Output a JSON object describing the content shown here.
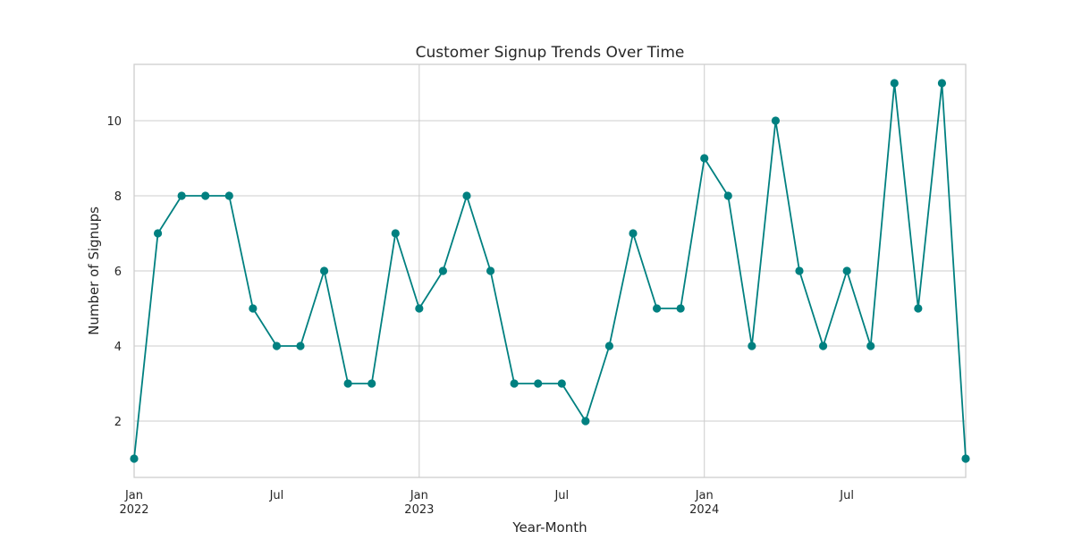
{
  "chart_data": {
    "type": "line",
    "title": "Customer Signup Trends Over Time",
    "xlabel": "Year-Month",
    "ylabel": "Number of Signups",
    "x": [
      "2022-01",
      "2022-02",
      "2022-03",
      "2022-04",
      "2022-05",
      "2022-06",
      "2022-07",
      "2022-08",
      "2022-09",
      "2022-10",
      "2022-11",
      "2022-12",
      "2023-01",
      "2023-02",
      "2023-03",
      "2023-04",
      "2023-05",
      "2023-06",
      "2023-07",
      "2023-08",
      "2023-09",
      "2023-10",
      "2023-11",
      "2023-12",
      "2024-01",
      "2024-02",
      "2024-03",
      "2024-04",
      "2024-05",
      "2024-06",
      "2024-07",
      "2024-08",
      "2024-09",
      "2024-10",
      "2024-11",
      "2024-12"
    ],
    "series": [
      {
        "values": [
          1,
          7,
          8,
          8,
          8,
          5,
          4,
          4,
          6,
          3,
          3,
          7,
          5,
          6,
          8,
          6,
          3,
          3,
          3,
          2,
          4,
          7,
          5,
          5,
          9,
          8,
          4,
          10,
          6,
          4,
          6,
          4,
          11,
          5,
          11,
          1
        ],
        "color": "#008080"
      }
    ],
    "ylim": [
      0.5,
      11.5
    ],
    "yticks": [
      2,
      4,
      6,
      8,
      10
    ],
    "xticks": [
      {
        "x": "2022-01",
        "line1": "Jan",
        "line2": "2022",
        "major": true
      },
      {
        "x": "2022-07",
        "line1": "Jul",
        "line2": "",
        "major": false
      },
      {
        "x": "2023-01",
        "line1": "Jan",
        "line2": "2023",
        "major": true
      },
      {
        "x": "2023-07",
        "line1": "Jul",
        "line2": "",
        "major": false
      },
      {
        "x": "2024-01",
        "line1": "Jan",
        "line2": "2024",
        "major": true
      },
      {
        "x": "2024-07",
        "line1": "Jul",
        "line2": "",
        "major": false
      }
    ],
    "grid": true,
    "marker": "circle",
    "colors": {
      "line": "#008080",
      "grid": "#cccccc",
      "frame": "#cccccc"
    }
  }
}
